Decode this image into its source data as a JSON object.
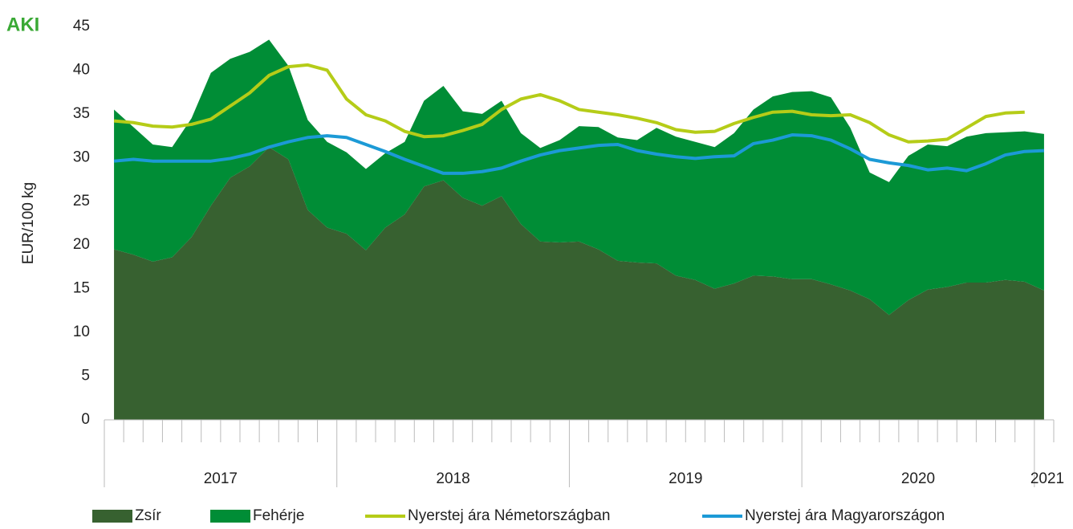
{
  "logo": "AKI",
  "chart_data": {
    "type": "stacked-area-line",
    "ylabel": "EUR/100 kg",
    "year_groups": [
      "2017",
      "2018",
      "2019",
      "2020",
      "2021"
    ],
    "categories": [
      null,
      null,
      null,
      null,
      null,
      null,
      null,
      null,
      null,
      null,
      null,
      null,
      null,
      null,
      null,
      null,
      null,
      null,
      null,
      null,
      null,
      null,
      null,
      null,
      null,
      null,
      null,
      null,
      null,
      null,
      null,
      null,
      null,
      null,
      null,
      null,
      null,
      null,
      null,
      null,
      null,
      null,
      null,
      null,
      null,
      null,
      null,
      null,
      null
    ],
    "ylim": [
      0,
      45
    ],
    "yticks": [
      0,
      5,
      10,
      15,
      20,
      25,
      30,
      35,
      40,
      45
    ],
    "grid": false,
    "legend": "bottom",
    "series": [
      {
        "name": "Zsír",
        "kind": "area",
        "color": "#376130",
        "values": [
          19.5,
          18.9,
          18.1,
          18.6,
          20.9,
          24.5,
          27.7,
          29.0,
          31.2,
          29.8,
          24.0,
          22.0,
          21.3,
          19.4,
          22.0,
          23.5,
          26.7,
          27.4,
          25.4,
          24.5,
          25.6,
          22.4,
          20.4,
          20.3,
          20.4,
          19.5,
          18.2,
          18.0,
          17.9,
          16.5,
          16.0,
          15.0,
          15.6,
          16.5,
          16.4,
          16.1,
          16.1,
          15.5,
          14.8,
          13.8,
          12.0,
          13.7,
          14.9,
          15.2,
          15.7,
          15.7,
          16.0,
          15.8,
          14.8
        ]
      },
      {
        "name": "Fehérje",
        "kind": "area",
        "color": "#008d36",
        "values": [
          16.0,
          14.6,
          13.4,
          12.6,
          13.6,
          15.2,
          13.6,
          13.1,
          12.3,
          10.7,
          10.3,
          9.8,
          9.3,
          9.3,
          8.5,
          8.3,
          9.8,
          10.8,
          9.9,
          10.5,
          10.9,
          10.4,
          10.7,
          11.7,
          13.2,
          14.0,
          14.1,
          14.0,
          15.5,
          15.9,
          15.8,
          16.2,
          17.2,
          19.0,
          20.6,
          21.4,
          21.5,
          21.4,
          18.6,
          14.5,
          15.2,
          16.5,
          16.6,
          16.1,
          16.7,
          17.1,
          16.9,
          17.2,
          17.9
        ]
      },
      {
        "name": "Nyerstej ára Németországban",
        "kind": "line",
        "color": "#b5cc18",
        "values": [
          34.2,
          34.0,
          33.6,
          33.5,
          33.8,
          34.4,
          35.9,
          37.4,
          39.4,
          40.4,
          40.6,
          40.0,
          36.7,
          34.9,
          34.2,
          33.0,
          32.4,
          32.5,
          33.1,
          33.8,
          35.5,
          36.7,
          37.2,
          36.5,
          35.5,
          35.2,
          34.9,
          34.5,
          34.0,
          33.2,
          32.9,
          33.0,
          33.9,
          34.6,
          35.2,
          35.3,
          34.9,
          34.8,
          34.9,
          34.0,
          32.6,
          31.8,
          31.9,
          32.1,
          33.4,
          34.7,
          35.1,
          35.2,
          null
        ]
      },
      {
        "name": "Nyerstej ára Magyarországon",
        "kind": "line",
        "color": "#1c9ad6",
        "values": [
          29.6,
          29.8,
          29.6,
          29.6,
          29.6,
          29.6,
          29.9,
          30.4,
          31.2,
          31.8,
          32.3,
          32.5,
          32.3,
          31.5,
          30.7,
          29.8,
          29.0,
          28.2,
          28.2,
          28.4,
          28.8,
          29.6,
          30.3,
          30.8,
          31.1,
          31.4,
          31.5,
          30.8,
          30.4,
          30.1,
          29.9,
          30.1,
          30.2,
          31.6,
          32.0,
          32.6,
          32.5,
          32.0,
          31.0,
          29.8,
          29.4,
          29.1,
          28.6,
          28.8,
          28.5,
          29.3,
          30.3,
          30.7,
          30.8
        ]
      }
    ]
  }
}
